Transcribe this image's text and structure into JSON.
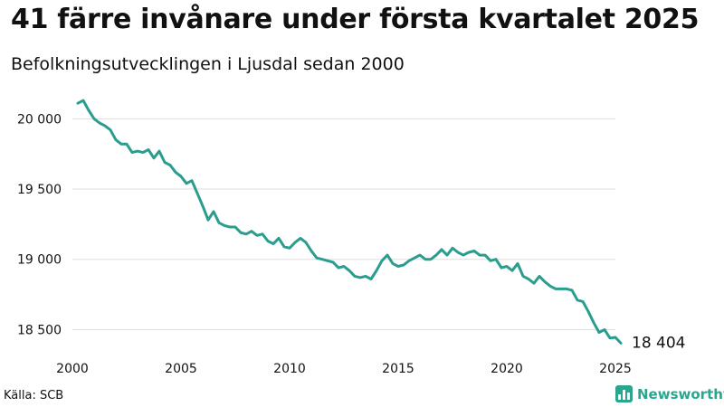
{
  "header": {
    "title": "41 färre invånare under första kvartalet 2025",
    "subtitle": "Befolkningsutvecklingen i Ljusdal sedan 2000"
  },
  "footer": {
    "source": "Källa: SCB",
    "brand": "Newsworthy",
    "brand_icon": "bar-chart-icon",
    "brand_color": "#2aa68e"
  },
  "chart_data": {
    "type": "line",
    "title": "41 färre invånare under första kvartalet 2025",
    "subtitle": "Befolkningsutvecklingen i Ljusdal sedan 2000",
    "xlabel": "",
    "ylabel": "",
    "xlim": [
      2000,
      2025
    ],
    "ylim": [
      18400,
      20150
    ],
    "x_ticks": [
      2000,
      2005,
      2010,
      2015,
      2020,
      2025
    ],
    "x_tick_labels": [
      "2000",
      "2005",
      "2010",
      "2015",
      "2020",
      "2025"
    ],
    "y_ticks": [
      18500,
      19000,
      19500,
      20000
    ],
    "y_tick_labels": [
      "18 500",
      "19 000",
      "19 500",
      "20 000"
    ],
    "grid": "horizontal",
    "line_color": "#2a9d8f",
    "end_label": "18 404",
    "series": [
      {
        "x": [
          2000.25,
          2000.5,
          2000.75,
          2001.0,
          2001.25,
          2001.5,
          2001.75,
          2002.0,
          2002.25,
          2002.5,
          2002.75,
          2003.0,
          2003.25,
          2003.5,
          2003.75,
          2004.0,
          2004.25,
          2004.5,
          2004.75,
          2005.0,
          2005.25,
          2005.5,
          2005.75,
          2006.0,
          2006.25,
          2006.5,
          2006.75,
          2007.0,
          2007.25,
          2007.5,
          2007.75,
          2008.0,
          2008.25,
          2008.5,
          2008.75,
          2009.0,
          2009.25,
          2009.5,
          2009.75,
          2010.0,
          2010.25,
          2010.5,
          2010.75,
          2011.0,
          2011.25,
          2011.5,
          2011.75,
          2012.0,
          2012.25,
          2012.5,
          2012.75,
          2013.0,
          2013.25,
          2013.5,
          2013.75,
          2014.0,
          2014.25,
          2014.5,
          2014.75,
          2015.0,
          2015.25,
          2015.5,
          2015.75,
          2016.0,
          2016.25,
          2016.5,
          2016.75,
          2017.0,
          2017.25,
          2017.5,
          2017.75,
          2018.0,
          2018.25,
          2018.5,
          2018.75,
          2019.0,
          2019.25,
          2019.5,
          2019.75,
          2020.0,
          2020.25,
          2020.5,
          2020.75,
          2021.0,
          2021.25,
          2021.5,
          2021.75,
          2022.0,
          2022.25,
          2022.5,
          2022.75,
          2023.0,
          2023.25,
          2023.5,
          2023.75,
          2024.0,
          2024.25,
          2024.5,
          2024.75,
          2025.0,
          2025.25
        ],
        "values": [
          20110,
          20130,
          20060,
          20000,
          19970,
          19950,
          19920,
          19850,
          19820,
          19820,
          19760,
          19770,
          19760,
          19780,
          19720,
          19770,
          19690,
          19670,
          19620,
          19590,
          19540,
          19560,
          19470,
          19380,
          19280,
          19340,
          19260,
          19240,
          19230,
          19230,
          19190,
          19180,
          19200,
          19170,
          19180,
          19130,
          19110,
          19150,
          19090,
          19080,
          19120,
          19150,
          19120,
          19060,
          19010,
          19000,
          18990,
          18980,
          18940,
          18950,
          18920,
          18880,
          18870,
          18880,
          18860,
          18920,
          18990,
          19030,
          18970,
          18950,
          18960,
          18990,
          19010,
          19030,
          19000,
          19000,
          19030,
          19070,
          19030,
          19080,
          19050,
          19030,
          19050,
          19060,
          19030,
          19030,
          18990,
          19000,
          18940,
          18950,
          18920,
          18970,
          18880,
          18860,
          18830,
          18880,
          18840,
          18810,
          18790,
          18790,
          18790,
          18780,
          18710,
          18700,
          18630,
          18550,
          18480,
          18500,
          18440,
          18445,
          18404
        ]
      }
    ]
  }
}
